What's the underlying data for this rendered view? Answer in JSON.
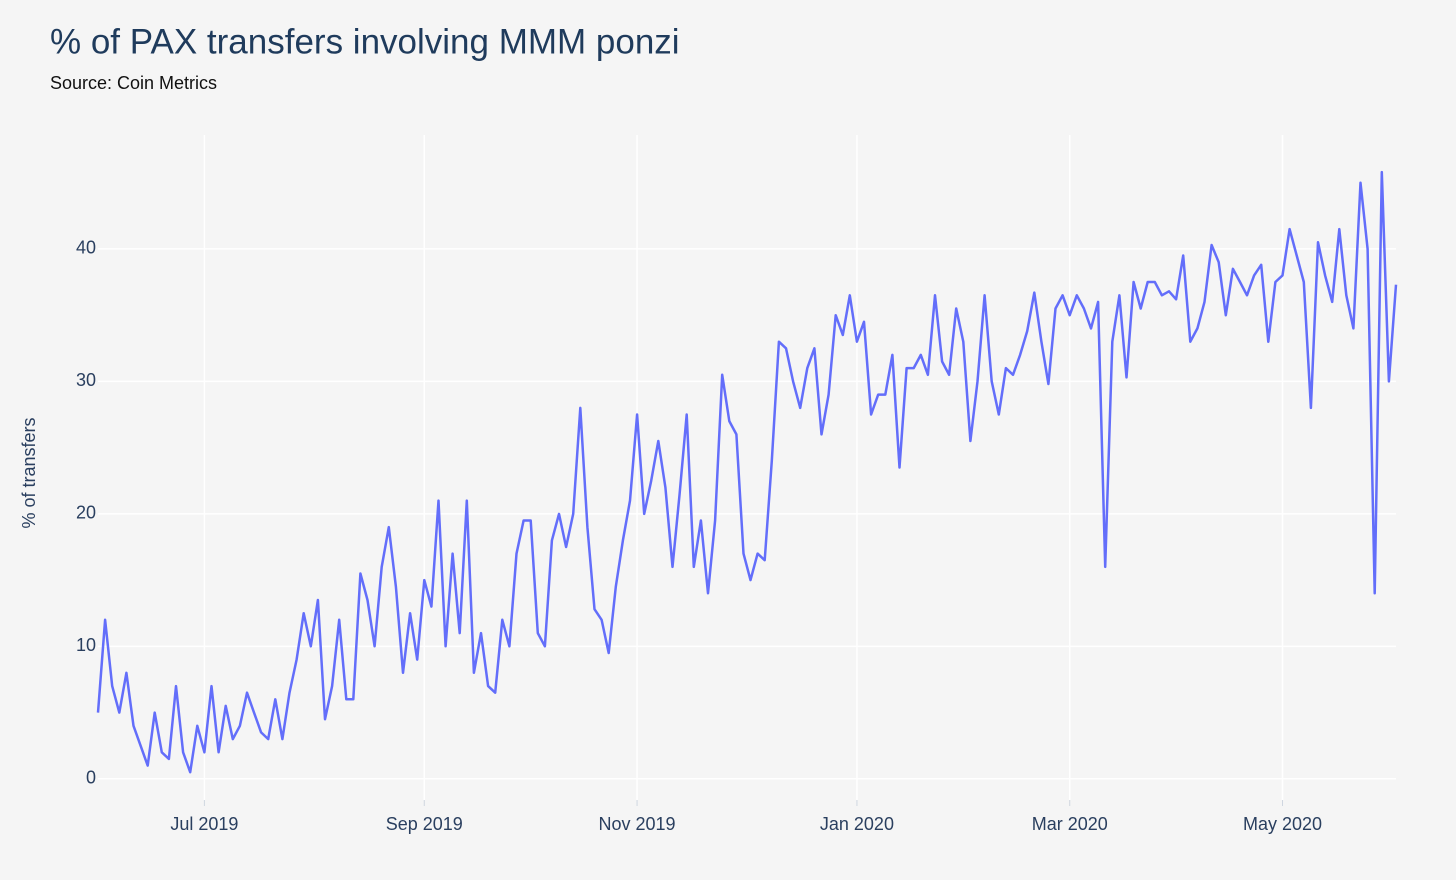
{
  "chart_data": {
    "type": "line",
    "title": "% of PAX transfers involving MMM ponzi",
    "subtitle": "Source: Coin Metrics",
    "y_label": "% of transfers",
    "categories": [
      null,
      null,
      null,
      null,
      null,
      null,
      null,
      null,
      null,
      null,
      null,
      null,
      null,
      null,
      null,
      "Jul 2019",
      null,
      null,
      null,
      null,
      null,
      null,
      null,
      null,
      null,
      null,
      null,
      null,
      null,
      null,
      null,
      null,
      null,
      null,
      null,
      null,
      null,
      null,
      null,
      null,
      null,
      null,
      null,
      null,
      null,
      null,
      "Sep 2019",
      null,
      null,
      null,
      null,
      null,
      null,
      null,
      null,
      null,
      null,
      null,
      null,
      null,
      null,
      null,
      null,
      null,
      null,
      null,
      null,
      null,
      null,
      null,
      null,
      null,
      null,
      null,
      null,
      null,
      "Nov 2019",
      null,
      null,
      null,
      null,
      null,
      null,
      null,
      null,
      null,
      null,
      null,
      null,
      null,
      null,
      null,
      null,
      null,
      null,
      null,
      null,
      null,
      null,
      null,
      null,
      null,
      null,
      null,
      null,
      null,
      null,
      "Jan 2020",
      null,
      null,
      null,
      null,
      null,
      null,
      null,
      null,
      null,
      null,
      null,
      null,
      null,
      null,
      null,
      null,
      null,
      null,
      null,
      null,
      null,
      null,
      null,
      null,
      null,
      null,
      null,
      null,
      null,
      "Mar 2020",
      null,
      null,
      null,
      null,
      null,
      null,
      null,
      null,
      null,
      null,
      null,
      null,
      null,
      null,
      null,
      null,
      null,
      null,
      null,
      null,
      null,
      null,
      null,
      null,
      null,
      null,
      null,
      null,
      null,
      "May 2020",
      null,
      null,
      null,
      null,
      null,
      null,
      null,
      null,
      null,
      null,
      null,
      null,
      null,
      null,
      null,
      null
    ],
    "values": [
      5,
      12,
      7,
      5,
      8,
      4,
      2.5,
      1,
      5,
      2,
      1.5,
      7,
      2,
      0.5,
      4,
      2,
      7,
      2,
      5.5,
      3,
      4,
      6.5,
      5,
      3.5,
      3,
      6,
      3,
      6.5,
      9,
      12.5,
      10,
      13.5,
      4.5,
      7,
      12,
      6,
      6,
      15.5,
      13.5,
      10,
      16,
      19,
      14.5,
      8,
      12.5,
      9,
      15,
      13,
      21,
      10,
      17,
      11,
      21,
      8,
      11,
      7,
      6.5,
      12,
      10,
      17,
      19.5,
      19.5,
      11,
      10,
      18,
      20,
      17.5,
      20,
      28,
      19,
      12.8,
      12,
      9.5,
      14.5,
      18,
      21,
      27.5,
      20,
      22.5,
      25.5,
      22,
      16,
      21.5,
      27.5,
      16,
      19.5,
      14,
      19.5,
      30.5,
      27,
      26,
      17,
      15,
      17,
      16.5,
      24,
      33,
      32.5,
      30,
      28,
      31,
      32.5,
      26,
      29,
      35,
      33.5,
      36.5,
      33,
      34.5,
      27.5,
      29,
      29,
      32,
      23.5,
      31,
      31,
      32,
      30.5,
      36.5,
      31.5,
      30.5,
      35.5,
      33,
      25.5,
      30,
      36.5,
      30,
      27.5,
      31,
      30.5,
      32,
      33.8,
      36.7,
      33,
      29.8,
      35.5,
      36.5,
      35,
      36.5,
      35.5,
      34,
      36,
      16,
      33,
      36.5,
      30.3,
      37.5,
      35.5,
      37.5,
      37.5,
      36.5,
      36.8,
      36.2,
      39.5,
      33,
      34,
      36,
      40.3,
      39,
      35,
      38.5,
      37.5,
      36.5,
      38,
      38.8,
      33,
      37.5,
      38,
      41.5,
      39.5,
      37.5,
      28,
      40.5,
      38,
      36,
      41.5,
      36.5,
      34,
      45,
      40,
      14,
      45.8,
      30,
      37.3
    ],
    "color": "#636efa",
    "ylim": [
      -1.6,
      48.6
    ],
    "yticks": [
      0,
      10,
      20,
      30,
      40
    ],
    "grid": true
  }
}
